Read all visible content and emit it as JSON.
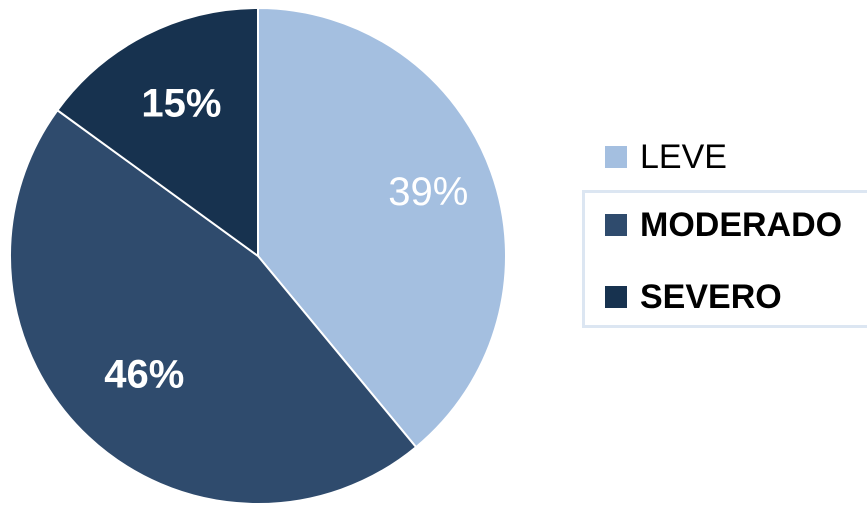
{
  "chart_data": {
    "type": "pie",
    "categories": [
      "LEVE",
      "MODERADO",
      "SEVERO"
    ],
    "values": [
      39,
      46,
      15
    ],
    "labels": [
      "39%",
      "46%",
      "15%"
    ],
    "colors": [
      "#a4bfe0",
      "#2f4b6d",
      "#17324f"
    ],
    "label_colors": [
      "#ffffff",
      "#ffffff",
      "#ffffff"
    ],
    "label_bold": [
      false,
      true,
      true
    ],
    "legend_bold": [
      false,
      true,
      true
    ],
    "start_angle_deg": 0,
    "direction": "clockwise",
    "legend_position": "right"
  }
}
